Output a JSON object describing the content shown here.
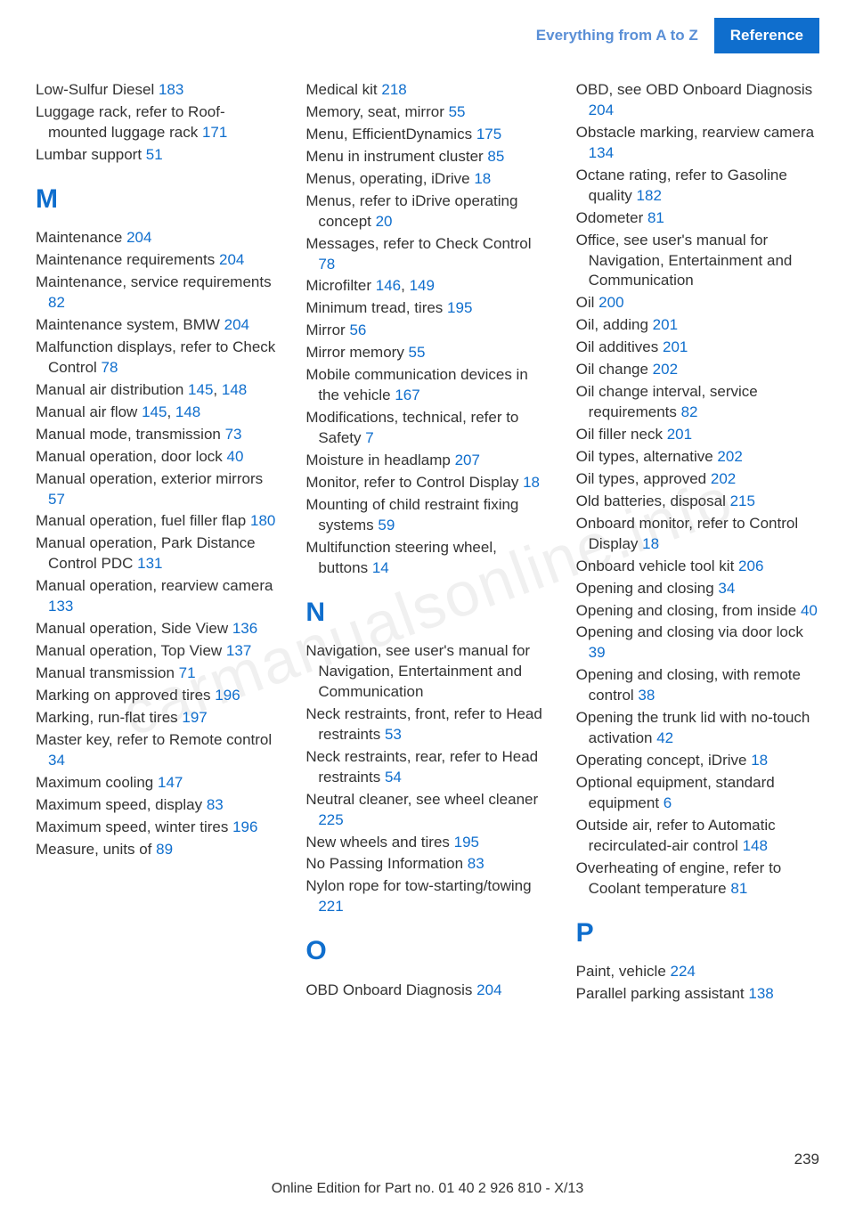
{
  "watermark": "carmanualsonline.info",
  "header": {
    "breadcrumb": "Everything from A to Z",
    "section": "Reference"
  },
  "page_number": "239",
  "footer": "Online Edition for Part no. 01 40 2 926 810 - X/13",
  "columns": [
    {
      "entries_before": [
        {
          "text": "Low-Sulfur Diesel ",
          "refs": [
            "183"
          ]
        },
        {
          "text": "Luggage rack, refer to Roof-mounted luggage rack ",
          "refs": [
            "171"
          ]
        },
        {
          "text": "Lumbar support ",
          "refs": [
            "51"
          ]
        }
      ],
      "letter": "M",
      "entries_after": [
        {
          "text": "Maintenance ",
          "refs": [
            "204"
          ]
        },
        {
          "text": "Maintenance require­ments ",
          "refs": [
            "204"
          ]
        },
        {
          "text": "Maintenance, service require­ments ",
          "refs": [
            "82"
          ]
        },
        {
          "text": "Maintenance system, BMW ",
          "refs": [
            "204"
          ]
        },
        {
          "text": "Malfunction displays, refer to Check Control ",
          "refs": [
            "78"
          ]
        },
        {
          "text": "Manual air distribu­tion ",
          "refs": [
            "145",
            "148"
          ]
        },
        {
          "text": "Manual air flow ",
          "refs": [
            "145",
            "148"
          ]
        },
        {
          "text": "Manual mode, transmis­sion ",
          "refs": [
            "73"
          ]
        },
        {
          "text": "Manual operation, door lock ",
          "refs": [
            "40"
          ]
        },
        {
          "text": "Manual operation, exterior mirrors ",
          "refs": [
            "57"
          ]
        },
        {
          "text": "Manual operation, fuel filler flap ",
          "refs": [
            "180"
          ]
        },
        {
          "text": "Manual operation, Park Dis­tance Control PDC ",
          "refs": [
            "131"
          ]
        },
        {
          "text": "Manual operation, rearview camera ",
          "refs": [
            "133"
          ]
        },
        {
          "text": "Manual operation, Side View ",
          "refs": [
            "136"
          ]
        },
        {
          "text": "Manual operation, Top View ",
          "refs": [
            "137"
          ]
        },
        {
          "text": "Manual transmission ",
          "refs": [
            "71"
          ]
        },
        {
          "text": "Marking on approved tires ",
          "refs": [
            "196"
          ]
        },
        {
          "text": "Marking, run-flat tires ",
          "refs": [
            "197"
          ]
        },
        {
          "text": "Master key, refer to Remote control ",
          "refs": [
            "34"
          ]
        },
        {
          "text": "Maximum cooling ",
          "refs": [
            "147"
          ]
        },
        {
          "text": "Maximum speed, display ",
          "refs": [
            "83"
          ]
        },
        {
          "text": "Maximum speed, winter tires ",
          "refs": [
            "196"
          ]
        },
        {
          "text": "Measure, units of ",
          "refs": [
            "89"
          ]
        }
      ]
    },
    {
      "entries_before": [
        {
          "text": "Medical kit ",
          "refs": [
            "218"
          ]
        },
        {
          "text": "Memory, seat, mirror ",
          "refs": [
            "55"
          ]
        },
        {
          "text": "Menu, EfficientDynamics ",
          "refs": [
            "175"
          ]
        },
        {
          "text": "Menu in instrument clus­ter ",
          "refs": [
            "85"
          ]
        },
        {
          "text": "Menus, operating, iDrive ",
          "refs": [
            "18"
          ]
        },
        {
          "text": "Menus, refer to iDrive operat­ing concept ",
          "refs": [
            "20"
          ]
        },
        {
          "text": "Messages, refer to Check Control ",
          "refs": [
            "78"
          ]
        },
        {
          "text": "Microfilter ",
          "refs": [
            "146",
            "149"
          ]
        },
        {
          "text": "Minimum tread, tires ",
          "refs": [
            "195"
          ]
        },
        {
          "text": "Mirror ",
          "refs": [
            "56"
          ]
        },
        {
          "text": "Mirror memory ",
          "refs": [
            "55"
          ]
        },
        {
          "text": "Mobile communication devi­ces in the vehicle ",
          "refs": [
            "167"
          ]
        },
        {
          "text": "Modifications, technical, refer to Safety ",
          "refs": [
            "7"
          ]
        },
        {
          "text": "Moisture in headlamp ",
          "refs": [
            "207"
          ]
        },
        {
          "text": "Monitor, refer to Control Dis­play ",
          "refs": [
            "18"
          ]
        },
        {
          "text": "Mounting of child restraint fix­ing systems ",
          "refs": [
            "59"
          ]
        },
        {
          "text": "Multifunction steering wheel, buttons ",
          "refs": [
            "14"
          ]
        }
      ],
      "letter": "N",
      "entries_after": [
        {
          "text": "Navigation, see user's manual for Navigation, Entertain­ment and Communication",
          "refs": []
        },
        {
          "text": "Neck restraints, front, refer to Head restraints ",
          "refs": [
            "53"
          ]
        },
        {
          "text": "Neck restraints, rear, refer to Head restraints ",
          "refs": [
            "54"
          ]
        },
        {
          "text": "Neutral cleaner, see wheel cleaner ",
          "refs": [
            "225"
          ]
        },
        {
          "text": "New wheels and tires ",
          "refs": [
            "195"
          ]
        },
        {
          "text": "No Passing Information ",
          "refs": [
            "83"
          ]
        },
        {
          "text": "Nylon rope for tow-starting/towing ",
          "refs": [
            "221"
          ]
        }
      ],
      "letter2": "O",
      "entries_after2": [
        {
          "text": "OBD Onboard Diagnosis ",
          "refs": [
            "204"
          ]
        }
      ]
    },
    {
      "entries_before": [
        {
          "text": "OBD, see OBD Onboard Di­agnosis ",
          "refs": [
            "204"
          ]
        },
        {
          "text": "Obstacle marking, rearview camera ",
          "refs": [
            "134"
          ]
        },
        {
          "text": "Octane rating, refer to Gaso­line quality ",
          "refs": [
            "182"
          ]
        },
        {
          "text": "Odometer ",
          "refs": [
            "81"
          ]
        },
        {
          "text": "Office, see user's manual for Navigation, Entertainment and Communication",
          "refs": []
        },
        {
          "text": "Oil ",
          "refs": [
            "200"
          ]
        },
        {
          "text": "Oil, adding ",
          "refs": [
            "201"
          ]
        },
        {
          "text": "Oil additives ",
          "refs": [
            "201"
          ]
        },
        {
          "text": "Oil change ",
          "refs": [
            "202"
          ]
        },
        {
          "text": "Oil change interval, service requirements ",
          "refs": [
            "82"
          ]
        },
        {
          "text": "Oil filler neck ",
          "refs": [
            "201"
          ]
        },
        {
          "text": "Oil types, alternative ",
          "refs": [
            "202"
          ]
        },
        {
          "text": "Oil types, approved ",
          "refs": [
            "202"
          ]
        },
        {
          "text": "Old batteries, disposal ",
          "refs": [
            "215"
          ]
        },
        {
          "text": "Onboard monitor, refer to Control Display ",
          "refs": [
            "18"
          ]
        },
        {
          "text": "Onboard vehicle tool kit ",
          "refs": [
            "206"
          ]
        },
        {
          "text": "Opening and closing ",
          "refs": [
            "34"
          ]
        },
        {
          "text": "Opening and closing, from in­side ",
          "refs": [
            "40"
          ]
        },
        {
          "text": "Opening and closing via door lock ",
          "refs": [
            "39"
          ]
        },
        {
          "text": "Opening and closing, with re­mote control ",
          "refs": [
            "38"
          ]
        },
        {
          "text": "Opening the trunk lid with no-touch activation ",
          "refs": [
            "42"
          ]
        },
        {
          "text": "Operating concept, iDrive ",
          "refs": [
            "18"
          ]
        },
        {
          "text": "Optional equipment, standard equipment ",
          "refs": [
            "6"
          ]
        },
        {
          "text": "Outside air, refer to Auto­matic recirculated-air con­trol ",
          "refs": [
            "148"
          ]
        },
        {
          "text": "Overheating of engine, refer to Coolant temperature ",
          "refs": [
            "81"
          ]
        }
      ],
      "letter": "P",
      "entries_after": [
        {
          "text": "Paint, vehicle ",
          "refs": [
            "224"
          ]
        },
        {
          "text": "Parallel parking assistant ",
          "refs": [
            "138"
          ]
        }
      ]
    }
  ]
}
